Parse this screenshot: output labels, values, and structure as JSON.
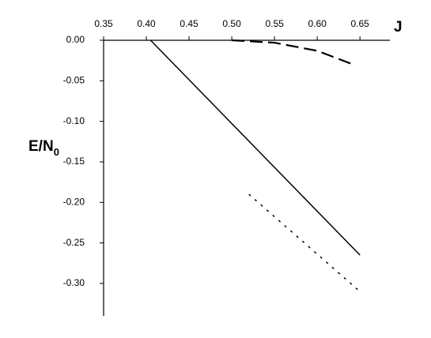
{
  "chart_data": {
    "type": "line",
    "xlabel": "J",
    "ylabel": {
      "text": "E/N",
      "subscript": "0"
    },
    "xlim": [
      0.35,
      0.685
    ],
    "ylim": [
      -0.34,
      0
    ],
    "xticks": [
      0.35,
      {
        "value": 0.4,
        "label": "0.40"
      },
      0.45,
      {
        "value": 0.5,
        "label": "0.50"
      },
      0.55,
      {
        "value": 0.6,
        "label": "0.60"
      },
      0.65
    ],
    "yticks": [
      {
        "value": 0,
        "label": "0.00"
      },
      {
        "value": -0.05,
        "label": "-0.05"
      },
      {
        "value": -0.1,
        "label": "-0.10"
      },
      {
        "value": -0.15,
        "label": "-0.15"
      },
      {
        "value": -0.2,
        "label": "-0.20"
      },
      {
        "value": -0.25,
        "label": "-0.25"
      },
      {
        "value": -0.3,
        "label": "-0.30"
      }
    ],
    "series": [
      {
        "color": "#000000",
        "style": "solid",
        "x": [
          0.405,
          0.65
        ],
        "values": [
          0,
          -0.265
        ]
      },
      {
        "color": "#000000",
        "style": "dashed",
        "x": [
          0.5,
          0.55,
          0.6,
          0.64
        ],
        "values": [
          0,
          -0.003,
          -0.013,
          -0.029
        ]
      },
      {
        "color": "#000000",
        "style": "dotted",
        "x": [
          0.52,
          0.65
        ],
        "values": [
          -0.19,
          -0.31
        ]
      }
    ]
  }
}
